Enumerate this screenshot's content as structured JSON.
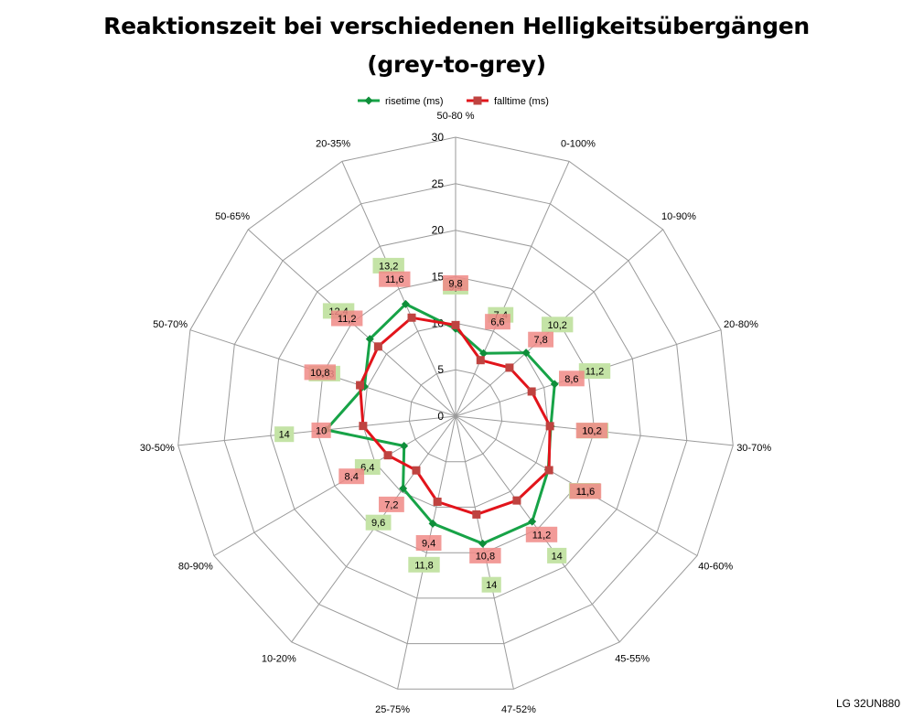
{
  "chart_data": {
    "type": "radar",
    "title_line1": "Reaktionszeit bei verschiedenen Helligkeitsübergängen",
    "title_line2": "(grey-to-grey)",
    "categories": [
      "50-80 %",
      "0-100%",
      "10-90%",
      "20-80%",
      "30-70%",
      "40-60%",
      "45-55%",
      "47-52%",
      "25-75%",
      "10-20%",
      "80-90%",
      "30-50%",
      "50-70%",
      "50-65%",
      "20-35%"
    ],
    "series": [
      {
        "name": "risetime (ms)",
        "color": "#17a347",
        "label_bg": "#c4e3a6",
        "values": [
          9.4,
          7.4,
          10.2,
          11.2,
          10.3,
          11.5,
          14,
          14,
          11.8,
          9.6,
          6.4,
          14,
          10.3,
          12.4,
          13.2
        ]
      },
      {
        "name": "falltime (ms)",
        "color": "#e2141b",
        "label_bg": "#f08a86",
        "values": [
          9.8,
          6.6,
          7.8,
          8.6,
          10.2,
          11.6,
          11.2,
          10.8,
          9.4,
          7.2,
          8.4,
          10,
          10.8,
          11.2,
          11.6
        ]
      }
    ],
    "ticks": [
      0,
      5,
      10,
      15,
      20,
      25,
      30
    ],
    "rmax": 30,
    "legend_position": "top"
  },
  "watermark": "LG 32UN880"
}
